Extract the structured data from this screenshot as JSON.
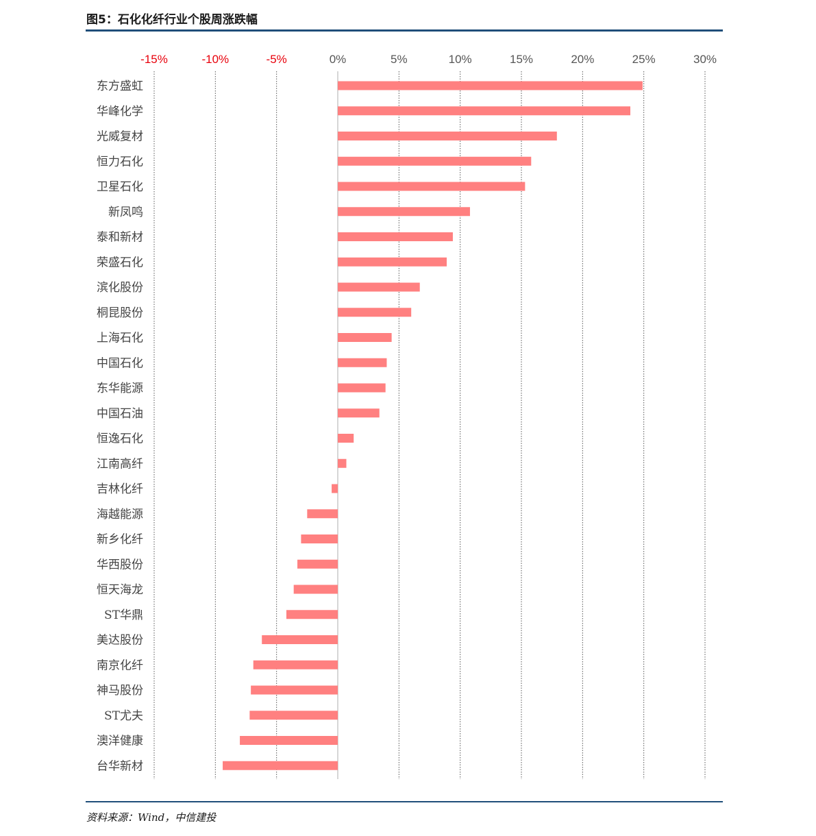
{
  "figure": {
    "title": "图5：石化化纤行业个股周涨跌幅",
    "source": "资料来源：Wind，中信建投"
  },
  "colors": {
    "bar": "#ff8080",
    "negative_tick": "#e8000b",
    "positive_tick": "#555555",
    "rule": "#1f4e79",
    "grid": "#555555"
  },
  "chart_data": {
    "type": "bar",
    "orientation": "horizontal",
    "title": "图5：石化化纤行业个股周涨跌幅",
    "xlim": [
      -15,
      30
    ],
    "x_ticks": [
      -15,
      -10,
      -5,
      0,
      5,
      10,
      15,
      20,
      25,
      30
    ],
    "x_tick_labels": [
      "-15%",
      "-10%",
      "-5%",
      "0%",
      "5%",
      "10%",
      "15%",
      "20%",
      "25%",
      "30%"
    ],
    "grid": "vertical dotted",
    "categories": [
      "东方盛虹",
      "华峰化学",
      "光威复材",
      "恒力石化",
      "卫星石化",
      "新凤鸣",
      "泰和新材",
      "荣盛石化",
      "滨化股份",
      "桐昆股份",
      "上海石化",
      "中国石化",
      "东华能源",
      "中国石油",
      "恒逸石化",
      "江南高纤",
      "吉林化纤",
      "海越能源",
      "新乡化纤",
      "华西股份",
      "恒天海龙",
      "ST华鼎",
      "美达股份",
      "南京化纤",
      "神马股份",
      "ST尤夫",
      "澳洋健康",
      "台华新材"
    ],
    "values": [
      24.9,
      23.9,
      17.9,
      15.8,
      15.3,
      10.8,
      9.4,
      8.9,
      6.7,
      6.0,
      4.4,
      4.0,
      3.9,
      3.4,
      1.3,
      0.7,
      -0.5,
      -2.5,
      -3.0,
      -3.3,
      -3.6,
      -4.2,
      -6.2,
      -6.9,
      -7.1,
      -7.2,
      -8.0,
      -9.4
    ]
  }
}
